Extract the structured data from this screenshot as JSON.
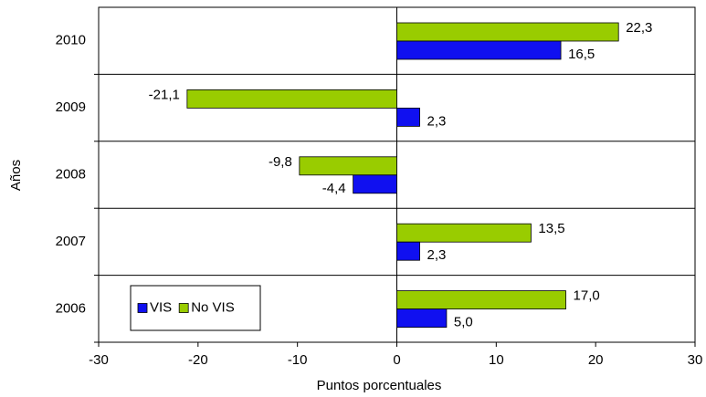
{
  "chart_data": {
    "type": "hbar",
    "xlabel": "Puntos porcentuales",
    "ylabel": "Años",
    "categories": [
      "2010",
      "2009",
      "2008",
      "2007",
      "2006"
    ],
    "series": [
      {
        "name": "VIS",
        "color": "#1010f0",
        "values": [
          16.5,
          2.3,
          -4.4,
          2.3,
          5.0
        ],
        "value_labels": [
          "16,5",
          "2,3",
          "-4,4",
          "2,3",
          "5,0"
        ]
      },
      {
        "name": "No VIS",
        "color": "#99cc00",
        "values": [
          22.3,
          -21.1,
          -9.8,
          13.5,
          17.0
        ],
        "value_labels": [
          "22,3",
          "-21,1",
          "-9,8",
          "13,5",
          "17,0"
        ]
      }
    ],
    "xlim": [
      -30,
      30
    ],
    "xticks": [
      -30,
      -20,
      -10,
      0,
      10,
      20,
      30
    ],
    "legend": "lower-left"
  }
}
